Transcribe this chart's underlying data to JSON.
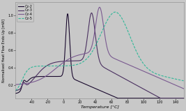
{
  "title": "",
  "xlabel": "Temperature [°C]",
  "ylabel": "Normalised Heat Flow Endo Up [mW]",
  "xlim": [
    -60,
    150
  ],
  "ylim": [
    0.05,
    1.15
  ],
  "x_ticks": [
    -40,
    -20,
    0,
    20,
    40,
    60,
    80,
    100,
    120,
    140
  ],
  "y_ticks": [
    0.2,
    0.4,
    0.6,
    0.8,
    1.0
  ],
  "background_color": "#c8c8c8",
  "legend": [
    "Cz-2",
    "Cz-3",
    "Cz-4",
    "Cz-5"
  ],
  "colors": {
    "Cz2": "#1a0a2e",
    "Cz3": "#4a3060",
    "Cz4": "#7a5a90",
    "Cz5": "#30b898"
  }
}
